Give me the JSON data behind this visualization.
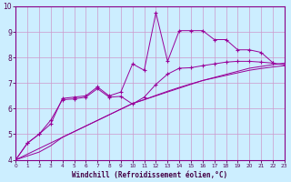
{
  "xlabel": "Windchill (Refroidissement éolien,°C)",
  "background_color": "#cceeff",
  "grid_color": "#cc99cc",
  "line_color": "#990099",
  "xlim": [
    0,
    23
  ],
  "ylim": [
    4,
    10
  ],
  "xticks": [
    0,
    1,
    2,
    3,
    4,
    5,
    6,
    7,
    8,
    9,
    10,
    11,
    12,
    13,
    14,
    15,
    16,
    17,
    18,
    19,
    20,
    21,
    22,
    23
  ],
  "yticks": [
    4,
    5,
    6,
    7,
    8,
    9,
    10
  ],
  "series1_x": [
    0,
    1,
    2,
    3,
    4,
    5,
    6,
    7,
    8,
    9,
    10,
    11,
    12,
    13,
    14,
    15,
    16,
    17,
    18,
    19,
    20,
    21,
    22
  ],
  "series1_y": [
    4.0,
    4.65,
    5.0,
    5.4,
    6.4,
    6.45,
    6.5,
    6.85,
    6.5,
    6.65,
    7.75,
    7.5,
    9.75,
    7.85,
    9.05,
    9.05,
    9.05,
    8.7,
    8.7,
    8.3,
    8.3,
    8.2,
    7.8
  ],
  "series2_x": [
    0,
    1,
    2,
    3,
    4,
    5,
    6,
    7,
    8,
    9,
    10,
    11,
    12,
    13,
    14,
    15,
    16,
    17,
    18,
    19,
    20,
    21,
    22,
    23
  ],
  "series2_y": [
    4.0,
    4.65,
    5.0,
    5.55,
    6.35,
    6.38,
    6.45,
    6.78,
    6.45,
    6.48,
    6.18,
    6.45,
    6.95,
    7.35,
    7.58,
    7.6,
    7.68,
    7.75,
    7.82,
    7.85,
    7.85,
    7.82,
    7.78,
    7.72
  ],
  "trend1_x": [
    0,
    1,
    2,
    3,
    4,
    5,
    6,
    7,
    8,
    9,
    10,
    11,
    12,
    13,
    14,
    15,
    16,
    17,
    18,
    19,
    20,
    21,
    22,
    23
  ],
  "trend1_y": [
    4.0,
    4.22,
    4.44,
    4.66,
    4.88,
    5.1,
    5.32,
    5.54,
    5.76,
    5.98,
    6.2,
    6.35,
    6.5,
    6.65,
    6.8,
    6.95,
    7.1,
    7.22,
    7.34,
    7.46,
    7.58,
    7.65,
    7.72,
    7.78
  ],
  "trend2_x": [
    0,
    1,
    2,
    3,
    4,
    5,
    6,
    7,
    8,
    9,
    10,
    11,
    12,
    13,
    14,
    15,
    16,
    17,
    18,
    19,
    20,
    21,
    22,
    23
  ],
  "trend2_y": [
    4.0,
    4.15,
    4.3,
    4.55,
    4.88,
    5.1,
    5.32,
    5.54,
    5.76,
    5.98,
    6.2,
    6.35,
    6.52,
    6.68,
    6.83,
    6.97,
    7.1,
    7.2,
    7.3,
    7.4,
    7.5,
    7.57,
    7.63,
    7.68
  ]
}
